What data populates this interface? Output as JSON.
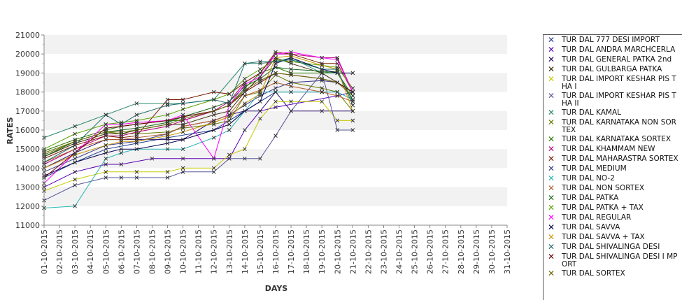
{
  "chart_data": {
    "type": "line",
    "xlabel": "DAYS",
    "ylabel": "RATES",
    "ylim": [
      11000,
      21000
    ],
    "yticks": [
      11000,
      12000,
      13000,
      14000,
      15000,
      16000,
      17000,
      18000,
      19000,
      20000,
      21000
    ],
    "grid": "alternating horizontal bands",
    "legend_position": "right",
    "categories": [
      "01-10-2015",
      "02-10-2015",
      "03-10-2015",
      "04-10-2015",
      "05-10-2015",
      "06-10-2015",
      "07-10-2015",
      "08-10-2015",
      "09-10-2015",
      "10-10-2015",
      "11-10-2015",
      "12-10-2015",
      "13-10-2015",
      "14-10-2015",
      "15-10-2015",
      "16-10-2015",
      "17-10-2015",
      "18-10-2015",
      "19-10-2015",
      "20-10-2015",
      "21-10-2015",
      "22-10-2015",
      "23-10-2015",
      "24-10-2015",
      "25-10-2015",
      "26-10-2015",
      "27-10-2015",
      "28-10-2015",
      "29-10-2015",
      "30-10-2015",
      "31-10-2015"
    ],
    "series": [
      {
        "name": "TUR DAL  777 DESI IMPORT",
        "color": "#1f3f8f",
        "x": [
          "01-10-2015",
          "03-10-2015",
          "05-10-2015",
          "07-10-2015",
          "09-10-2015",
          "12-10-2015",
          "14-10-2015",
          "16-10-2015",
          "19-10-2015",
          "20-10-2015"
        ],
        "values": [
          13500,
          14300,
          15000,
          15300,
          15600,
          16000,
          17000,
          18000,
          18000,
          18000
        ]
      },
      {
        "name": "TUR DAL ANDRA MARCHCERLA",
        "color": "#5b00b5",
        "x": [
          "01-10-2015",
          "03-10-2015",
          "05-10-2015",
          "06-10-2015",
          "08-10-2015",
          "10-10-2015",
          "12-10-2015",
          "13-10-2015",
          "14-10-2015",
          "15-10-2015",
          "16-10-2015",
          "20-10-2015",
          "21-10-2015"
        ],
        "values": [
          13000,
          13800,
          14200,
          14200,
          14500,
          14500,
          14500,
          14500,
          16000,
          17000,
          17200,
          17800,
          18000
        ]
      },
      {
        "name": "TUR DAL GENERAL PATKA 2nd",
        "color": "#2a0a6a",
        "x": [
          "01-10-2015",
          "03-10-2015",
          "05-10-2015",
          "07-10-2015",
          "09-10-2015",
          "10-10-2015",
          "12-10-2015",
          "13-10-2015",
          "14-10-2015",
          "15-10-2015",
          "16-10-2015",
          "17-10-2015",
          "19-10-2015",
          "21-10-2015"
        ],
        "values": [
          14000,
          14800,
          15500,
          15500,
          15500,
          15500,
          16500,
          16800,
          17000,
          17000,
          18000,
          17000,
          17000,
          17000
        ]
      },
      {
        "name": "TUR DAL GULBARGA PATKA",
        "color": "#3a2a00",
        "x": [
          "01-10-2015",
          "03-10-2015",
          "05-10-2015",
          "06-10-2015",
          "07-10-2015",
          "09-10-2015",
          "10-10-2015",
          "12-10-2015",
          "13-10-2015",
          "14-10-2015",
          "15-10-2015",
          "16-10-2015",
          "17-10-2015",
          "19-10-2015",
          "21-10-2015"
        ],
        "values": [
          14600,
          15300,
          15800,
          15800,
          16000,
          16300,
          16300,
          16800,
          17000,
          18000,
          18800,
          19800,
          19500,
          19000,
          18000
        ]
      },
      {
        "name": "TUR DAL IMPORT KESHAR PIS THA I",
        "color": "#c8c800",
        "x": [
          "01-10-2015",
          "03-10-2015",
          "05-10-2015",
          "07-10-2015",
          "09-10-2015",
          "10-10-2015",
          "12-10-2015",
          "13-10-2015",
          "14-10-2015",
          "15-10-2015",
          "16-10-2015",
          "17-10-2015",
          "19-10-2015",
          "20-10-2015",
          "21-10-2015"
        ],
        "values": [
          12800,
          13400,
          13800,
          13800,
          13800,
          14000,
          14000,
          14700,
          15000,
          16600,
          17500,
          17500,
          17500,
          16500,
          16500
        ]
      },
      {
        "name": "TUR DAL IMPORT KESHAR PIS THA II",
        "color": "#555599",
        "x": [
          "01-10-2015",
          "03-10-2015",
          "05-10-2015",
          "06-10-2015",
          "07-10-2015",
          "09-10-2015",
          "10-10-2015",
          "12-10-2015",
          "13-10-2015",
          "14-10-2015",
          "15-10-2015",
          "16-10-2015",
          "17-10-2015",
          "19-10-2015",
          "20-10-2015",
          "21-10-2015"
        ],
        "values": [
          12300,
          13100,
          13500,
          13500,
          13500,
          13500,
          13800,
          13800,
          14500,
          14500,
          14500,
          15700,
          17000,
          19000,
          16000,
          16000
        ]
      },
      {
        "name": "TUR DAL KAMAL",
        "color": "#2a8a6a",
        "x": [
          "01-10-2015",
          "03-10-2015",
          "05-10-2015",
          "07-10-2015",
          "09-10-2015",
          "10-10-2015",
          "12-10-2015",
          "14-10-2015",
          "15-10-2015",
          "16-10-2015",
          "17-10-2015",
          "19-10-2015",
          "20-10-2015",
          "21-10-2015"
        ],
        "values": [
          15600,
          16200,
          16800,
          17400,
          17400,
          17400,
          17600,
          19500,
          19500,
          19600,
          19800,
          19000,
          19000,
          17600
        ]
      },
      {
        "name": "TUR DAL KARNATAKA NON SOR TEX",
        "color": "#6a7a00",
        "x": [
          "01-10-2015",
          "03-10-2015",
          "05-10-2015",
          "06-10-2015",
          "07-10-2015",
          "09-10-2015",
          "10-10-2015",
          "12-10-2015",
          "13-10-2015",
          "14-10-2015",
          "15-10-2015",
          "16-10-2015",
          "17-10-2015",
          "19-10-2015",
          "20-10-2015",
          "21-10-2015"
        ],
        "values": [
          14800,
          15400,
          15900,
          15800,
          15800,
          15900,
          16100,
          16300,
          16500,
          17800,
          18000,
          18900,
          18500,
          18200,
          18000,
          17000
        ]
      },
      {
        "name": "TUR DAL KARNATAKA SORTEX",
        "color": "#2a7a00",
        "x": [
          "01-10-2015",
          "03-10-2015",
          "05-10-2015",
          "06-10-2015",
          "07-10-2015",
          "09-10-2015",
          "10-10-2015",
          "12-10-2015",
          "13-10-2015",
          "14-10-2015",
          "15-10-2015",
          "16-10-2015",
          "17-10-2015",
          "19-10-2015",
          "20-10-2015",
          "21-10-2015"
        ],
        "values": [
          14900,
          15500,
          16000,
          16200,
          16300,
          16500,
          16500,
          17000,
          17300,
          18200,
          19000,
          19300,
          19000,
          19000,
          19100,
          17500
        ]
      },
      {
        "name": "TUR DAL KHAMMAM NEW",
        "color": "#b5007a",
        "x": [
          "01-10-2015",
          "03-10-2015",
          "05-10-2015",
          "06-10-2015",
          "07-10-2015",
          "09-10-2015",
          "10-10-2015",
          "12-10-2015",
          "13-10-2015",
          "14-10-2015",
          "15-10-2015",
          "16-10-2015",
          "17-10-2015",
          "19-10-2015",
          "20-10-2015",
          "21-10-2015"
        ],
        "values": [
          14200,
          15000,
          15700,
          15700,
          15900,
          16200,
          16500,
          17000,
          17500,
          18500,
          19000,
          20000,
          20000,
          19800,
          19800,
          18000
        ]
      },
      {
        "name": "TUR DAL MAHARASTRA SORTEX",
        "color": "#7a1a00",
        "x": [
          "01-10-2015",
          "03-10-2015",
          "05-10-2015",
          "06-10-2015",
          "07-10-2015",
          "09-10-2015",
          "10-10-2015",
          "12-10-2015",
          "13-10-2015",
          "14-10-2015",
          "15-10-2015",
          "16-10-2015",
          "17-10-2015",
          "19-10-2015",
          "20-10-2015",
          "21-10-2015"
        ],
        "values": [
          14500,
          15200,
          15700,
          15600,
          15700,
          17600,
          17600,
          18000,
          17900,
          18500,
          19000,
          20100,
          20000,
          19500,
          19500,
          18000
        ]
      },
      {
        "name": "TUR DAL MEDIUM",
        "color": "#3a3a8a",
        "x": [
          "01-10-2015",
          "03-10-2015",
          "05-10-2015",
          "06-10-2015",
          "07-10-2015",
          "09-10-2015",
          "10-10-2015",
          "12-10-2015",
          "13-10-2015",
          "14-10-2015",
          "15-10-2015",
          "16-10-2015",
          "17-10-2015",
          "19-10-2015",
          "20-10-2015",
          "21-10-2015"
        ],
        "values": [
          13800,
          14500,
          15200,
          15300,
          15400,
          15800,
          16200,
          16500,
          16800,
          17300,
          17800,
          18200,
          18500,
          18600,
          18500,
          18000
        ]
      },
      {
        "name": "TUR DAL NO-2",
        "color": "#2ab5b5",
        "x": [
          "01-10-2015",
          "03-10-2015",
          "05-10-2015",
          "06-10-2015",
          "07-10-2015",
          "09-10-2015",
          "10-10-2015",
          "12-10-2015",
          "13-10-2015",
          "14-10-2015",
          "15-10-2015",
          "16-10-2015",
          "17-10-2015",
          "19-10-2015",
          "20-10-2015",
          "21-10-2015"
        ],
        "values": [
          11900,
          12000,
          14500,
          14800,
          15000,
          15000,
          15000,
          15600,
          16000,
          17000,
          18000,
          18000,
          18000,
          18000,
          18000,
          17600
        ]
      },
      {
        "name": "TUR DAL NON SORTEX",
        "color": "#b55a2a",
        "x": [
          "01-10-2015",
          "03-10-2015",
          "05-10-2015",
          "06-10-2015",
          "07-10-2015",
          "09-10-2015",
          "10-10-2015",
          "12-10-2015",
          "13-10-2015",
          "14-10-2015",
          "15-10-2015",
          "16-10-2015",
          "17-10-2015",
          "19-10-2015",
          "20-10-2015",
          "21-10-2015"
        ],
        "values": [
          14300,
          15000,
          15500,
          15500,
          15600,
          15800,
          16200,
          16500,
          16800,
          17800,
          18100,
          18500,
          18300,
          18000,
          17800,
          17500
        ]
      },
      {
        "name": "TUR DAL PATKA",
        "color": "#1a6a1a",
        "x": [
          "01-10-2015",
          "03-10-2015",
          "05-10-2015",
          "06-10-2015",
          "07-10-2015",
          "09-10-2015",
          "10-10-2015",
          "12-10-2015",
          "13-10-2015",
          "14-10-2015",
          "15-10-2015",
          "16-10-2015",
          "17-10-2015",
          "19-10-2015",
          "20-10-2015",
          "21-10-2015"
        ],
        "values": [
          14600,
          15400,
          15900,
          16000,
          16100,
          16400,
          16700,
          17200,
          17500,
          18300,
          18700,
          19300,
          19200,
          19100,
          19000,
          17800
        ]
      },
      {
        "name": "TUR DAL PATKA + TAX",
        "color": "#5aa500",
        "x": [
          "01-10-2015",
          "03-10-2015",
          "05-10-2015",
          "06-10-2015",
          "07-10-2015",
          "09-10-2015",
          "10-10-2015",
          "12-10-2015",
          "13-10-2015",
          "14-10-2015",
          "15-10-2015",
          "16-10-2015",
          "17-10-2015",
          "19-10-2015",
          "20-10-2015",
          "21-10-2015"
        ],
        "values": [
          15000,
          15800,
          16300,
          16400,
          16500,
          16800,
          17100,
          17600,
          17900,
          18700,
          19200,
          19700,
          19600,
          19400,
          19300,
          18200
        ]
      },
      {
        "name": "TUR DAL REGULAR",
        "color": "#ff00ff",
        "x": [
          "01-10-2015",
          "03-10-2015",
          "05-10-2015",
          "06-10-2015",
          "07-10-2015",
          "09-10-2015",
          "10-10-2015",
          "12-10-2015",
          "13-10-2015",
          "14-10-2015",
          "15-10-2015",
          "16-10-2015",
          "17-10-2015",
          "19-10-2015",
          "20-10-2015",
          "21-10-2015"
        ],
        "values": [
          13200,
          14800,
          16300,
          16300,
          16400,
          16500,
          16800,
          14500,
          17300,
          18400,
          18800,
          20000,
          20100,
          19800,
          19700,
          18000
        ]
      },
      {
        "name": "TUR DAL SAVVA",
        "color": "#000050",
        "x": [
          "01-10-2015",
          "03-10-2015",
          "05-10-2015",
          "06-10-2015",
          "07-10-2015",
          "09-10-2015",
          "10-10-2015",
          "12-10-2015",
          "13-10-2015",
          "14-10-2015",
          "15-10-2015",
          "16-10-2015",
          "17-10-2015",
          "19-10-2015",
          "20-10-2015",
          "21-10-2015"
        ],
        "values": [
          13600,
          14300,
          14800,
          15000,
          15000,
          15300,
          15500,
          16000,
          16300,
          17000,
          17500,
          19500,
          19800,
          19200,
          19000,
          19000
        ]
      },
      {
        "name": "TUR DAL SAVVA + TAX",
        "color": "#c89600",
        "x": [
          "01-10-2015",
          "03-10-2015",
          "05-10-2015",
          "06-10-2015",
          "07-10-2015",
          "09-10-2015",
          "10-10-2015",
          "12-10-2015",
          "13-10-2015",
          "14-10-2015",
          "15-10-2015",
          "16-10-2015",
          "17-10-2015",
          "19-10-2015",
          "20-10-2015",
          "21-10-2015"
        ],
        "values": [
          14000,
          14700,
          15200,
          15400,
          15400,
          15700,
          15900,
          16400,
          16700,
          17400,
          17900,
          19800,
          19900,
          19400,
          19200,
          17000
        ]
      },
      {
        "name": "TUR DAL SHIVALINGA DESI",
        "color": "#1a6a6a",
        "x": [
          "01-10-2015",
          "03-10-2015",
          "05-10-2015",
          "06-10-2015",
          "07-10-2015",
          "09-10-2015",
          "10-10-2015",
          "12-10-2015",
          "13-10-2015",
          "14-10-2015",
          "15-10-2015",
          "16-10-2015",
          "17-10-2015",
          "19-10-2015",
          "20-10-2015",
          "21-10-2015"
        ],
        "values": [
          14300,
          15200,
          16800,
          16300,
          16800,
          17300,
          17400,
          17600,
          17400,
          19500,
          19600,
          19600,
          19700,
          19200,
          19200,
          17300
        ]
      },
      {
        "name": "TUR DAL SHIVALINGA DESI I MPORT",
        "color": "#6a0000",
        "x": [
          "01-10-2015",
          "03-10-2015",
          "05-10-2015",
          "06-10-2015",
          "07-10-2015",
          "09-10-2015",
          "10-10-2015",
          "12-10-2015",
          "13-10-2015",
          "14-10-2015",
          "15-10-2015",
          "16-10-2015",
          "17-10-2015",
          "19-10-2015",
          "20-10-2015",
          "21-10-2015"
        ],
        "values": [
          13500,
          14800,
          16100,
          16200,
          16300,
          16500,
          16700,
          17000,
          17300,
          18000,
          18500,
          19000,
          18900,
          18700,
          18500,
          18000
        ]
      },
      {
        "name": "TUR DAL SORTEX",
        "color": "#6a6a00",
        "x": [
          "01-10-2015",
          "03-10-2015",
          "05-10-2015",
          "06-10-2015",
          "07-10-2015",
          "09-10-2015",
          "10-10-2015",
          "12-10-2015",
          "13-10-2015",
          "14-10-2015",
          "15-10-2015",
          "16-10-2015",
          "17-10-2015",
          "19-10-2015",
          "20-10-2015",
          "21-10-2015"
        ],
        "values": [
          14700,
          15400,
          15900,
          15900,
          16000,
          16300,
          16600,
          17000,
          17300,
          18100,
          18600,
          19000,
          18900,
          18700,
          18500,
          17800
        ]
      }
    ]
  }
}
